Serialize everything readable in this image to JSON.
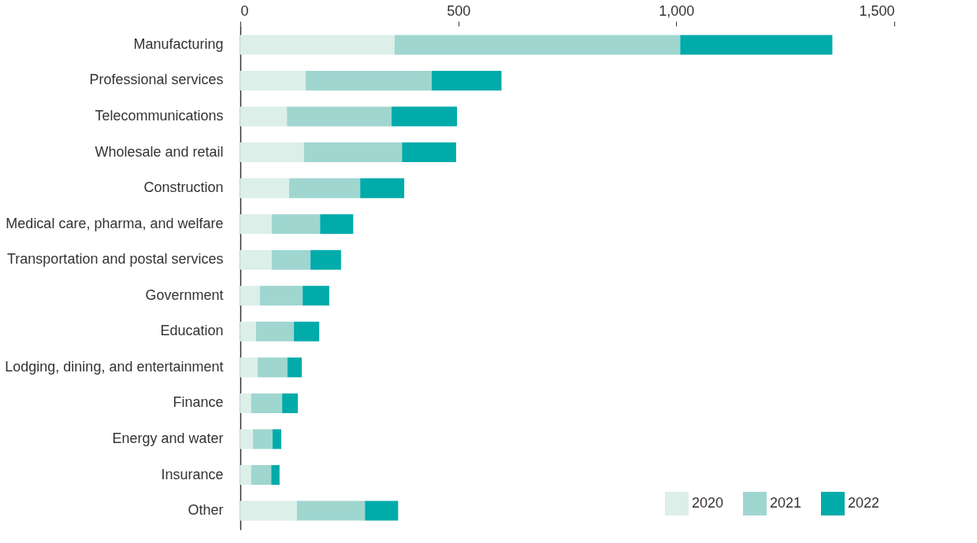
{
  "chart_data": {
    "type": "bar",
    "orientation": "horizontal",
    "stacked": true,
    "categories": [
      "Manufacturing",
      "Professional services",
      "Telecommunications",
      "Wholesale and retail",
      "Construction",
      "Medical care, pharma, and welfare",
      "Transportation and postal services",
      "Government",
      "Education",
      "Lodging, dining, and entertainment",
      "Finance",
      "Energy and water",
      "Insurance",
      "Other"
    ],
    "series": [
      {
        "name": "2020",
        "color": "#dcefe9",
        "values": [
          354,
          150,
          107,
          146,
          112,
          72,
          72,
          45,
          36,
          40,
          25,
          29,
          25,
          130
        ]
      },
      {
        "name": "2021",
        "color": "#9fd6d0",
        "values": [
          655,
          289,
          240,
          225,
          163,
          111,
          89,
          98,
          87,
          68,
          71,
          45,
          46,
          156
        ]
      },
      {
        "name": "2022",
        "color": "#00abaa",
        "values": [
          349,
          160,
          150,
          124,
          101,
          76,
          70,
          61,
          58,
          33,
          36,
          20,
          19,
          76
        ]
      }
    ],
    "xlim": [
      0,
      1500
    ],
    "xticks": [
      0,
      500,
      {
        "value": 1000,
        "label": "1,000"
      },
      {
        "value": 1500,
        "label": "1,500"
      }
    ],
    "grid": false,
    "legend": "bottom right"
  }
}
